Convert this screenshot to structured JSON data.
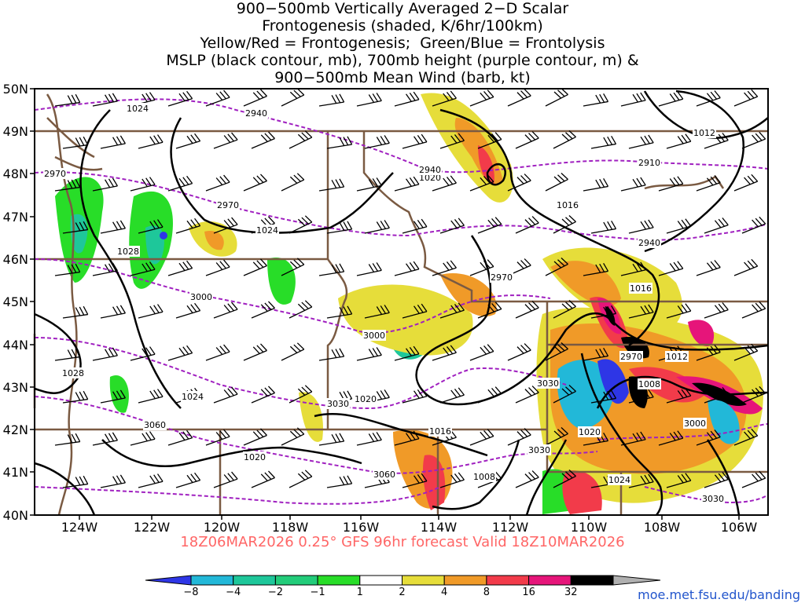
{
  "title_lines": [
    "900−500mb Vertically Averaged 2−D Scalar",
    "Frontogenesis (shaded, K/6hr/100km)",
    "Yellow/Red = Frontogenesis;  Green/Blue = Frontolysis",
    "MSLP (black contour, mb), 700mb height (purple contour, m) &",
    "900−500mb Mean Wind (barb, kt)"
  ],
  "subtitle": "18Z06MAR2026 0.25° GFS 96hr forecast Valid 18Z10MAR2026",
  "credit": "moe.met.fsu.edu/banding",
  "axes": {
    "lat_labels": [
      "50N",
      "49N",
      "48N",
      "47N",
      "46N",
      "45N",
      "44N",
      "43N",
      "42N",
      "41N",
      "40N"
    ],
    "lon_labels": [
      "124W",
      "122W",
      "120W",
      "118W",
      "116W",
      "114W",
      "112W",
      "110W",
      "108W",
      "106W"
    ]
  },
  "colorbar": {
    "tick_labels": [
      "−8",
      "−4",
      "−2",
      "−1",
      "1",
      "2",
      "4",
      "8",
      "16",
      "32"
    ],
    "colors": [
      "#2e36e6",
      "#22b8d8",
      "#1ec79a",
      "#22cc7a",
      "#28dd28",
      "#ffffff",
      "#e6dd3a",
      "#f09a28",
      "#f23b4a",
      "#e6157a",
      "#000000",
      "#b0b0b0"
    ]
  },
  "contour_labels": {
    "mslp": [
      "1024",
      "1024",
      "1028",
      "1028",
      "1024",
      "1020",
      "1016",
      "1012",
      "1016",
      "1012",
      "1008",
      "1008",
      "1016",
      "1020",
      "1020",
      "1024",
      "1020"
    ],
    "height": [
      "2940",
      "2970",
      "2970",
      "2940",
      "2910",
      "2940",
      "2970",
      "3000",
      "3000",
      "3030",
      "3060",
      "3060",
      "3030",
      "3000",
      "2970",
      "3030",
      "3000",
      "3030"
    ]
  },
  "colors": {
    "state_border": "#7a5a42",
    "mslp": "#000000",
    "height": "#a020c0",
    "label": "#ff6666",
    "credit": "#2255cc"
  }
}
